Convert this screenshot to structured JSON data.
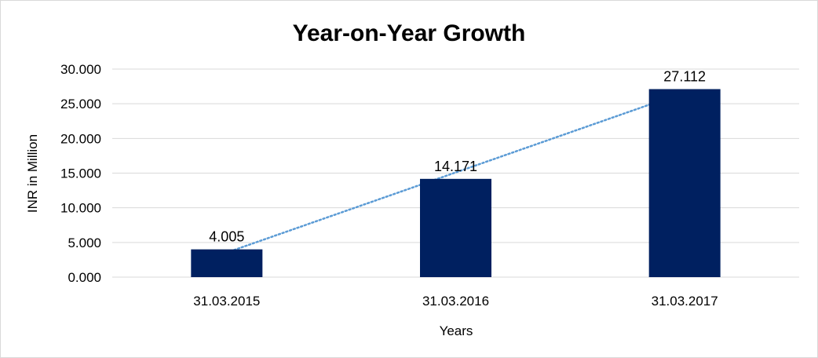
{
  "chart_data": {
    "type": "bar",
    "title": "Year-on-Year Growth",
    "xlabel": "Years",
    "ylabel": "INR in Million",
    "categories": [
      "31.03.2015",
      "31.03.2016",
      "31.03.2017"
    ],
    "values": [
      4.005,
      14.171,
      27.112
    ],
    "data_labels": [
      "4.005",
      "14.171",
      "27.112"
    ],
    "ylim": [
      0,
      30
    ],
    "yticks": [
      0,
      5,
      10,
      15,
      20,
      25,
      30
    ],
    "ytick_labels": [
      "0.000",
      "5.000",
      "10.000",
      "15.000",
      "20.000",
      "25.000",
      "30.000"
    ],
    "grid": true,
    "legend": "none",
    "trendline": "linear, dotted",
    "colors": {
      "bar": "#002060",
      "trendline": "#5b9bd5",
      "grid": "#d9d9d9"
    }
  }
}
